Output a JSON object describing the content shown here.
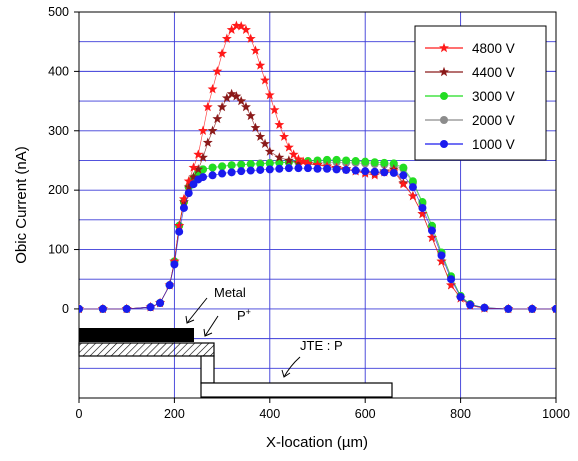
{
  "chart_data": {
    "type": "scatter",
    "title": "",
    "xlabel": "X-location (µm)",
    "ylabel": "Obic Current (nA)",
    "xlim": [
      0,
      1000
    ],
    "ylim": [
      -150,
      500
    ],
    "xticks": [
      0,
      200,
      400,
      600,
      800,
      1000
    ],
    "yticks": [
      0,
      100,
      200,
      300,
      400,
      500
    ],
    "grid": true,
    "legend": "top-right",
    "series": [
      {
        "name": "4800 V",
        "color": "#ff1a1a",
        "marker": "star",
        "x": [
          0,
          50,
          100,
          150,
          170,
          190,
          200,
          210,
          220,
          230,
          240,
          250,
          260,
          270,
          280,
          290,
          300,
          310,
          320,
          330,
          340,
          350,
          360,
          370,
          380,
          390,
          400,
          410,
          420,
          430,
          440,
          450,
          460,
          470,
          480,
          500,
          520,
          540,
          560,
          580,
          600,
          620,
          640,
          660,
          680,
          700,
          720,
          740,
          760,
          780,
          800,
          820,
          850,
          900,
          950,
          1000
        ],
        "y": [
          0,
          0,
          0,
          3,
          10,
          40,
          80,
          140,
          185,
          215,
          238,
          260,
          300,
          340,
          370,
          400,
          430,
          455,
          470,
          477,
          476,
          470,
          455,
          435,
          410,
          385,
          360,
          335,
          310,
          290,
          272,
          260,
          252,
          248,
          245,
          243,
          240,
          238,
          236,
          232,
          228,
          225,
          230,
          232,
          210,
          190,
          160,
          120,
          80,
          40,
          18,
          6,
          1,
          0,
          0,
          0
        ]
      },
      {
        "name": "4400 V",
        "color": "#8b1a1a",
        "marker": "star",
        "x": [
          0,
          50,
          100,
          150,
          170,
          190,
          200,
          210,
          220,
          230,
          240,
          250,
          260,
          270,
          280,
          290,
          300,
          310,
          320,
          330,
          340,
          350,
          360,
          370,
          380,
          390,
          400,
          420,
          440,
          460,
          480,
          500,
          520,
          540,
          560,
          580,
          600,
          620,
          640,
          660,
          680,
          700,
          720,
          740,
          760,
          780,
          800,
          820,
          850,
          900,
          950,
          1000
        ],
        "y": [
          0,
          0,
          0,
          3,
          10,
          40,
          80,
          140,
          180,
          205,
          222,
          235,
          255,
          280,
          300,
          320,
          340,
          355,
          362,
          358,
          350,
          340,
          325,
          305,
          290,
          278,
          265,
          255,
          250,
          246,
          244,
          242,
          240,
          237,
          235,
          232,
          230,
          228,
          232,
          235,
          212,
          190,
          160,
          120,
          80,
          40,
          18,
          6,
          1,
          0,
          0,
          0
        ]
      },
      {
        "name": "3000 V",
        "color": "#22dd22",
        "marker": "circle",
        "x": [
          0,
          50,
          100,
          150,
          170,
          190,
          200,
          210,
          220,
          230,
          240,
          250,
          260,
          280,
          300,
          320,
          340,
          360,
          380,
          400,
          420,
          440,
          460,
          480,
          500,
          520,
          540,
          560,
          580,
          600,
          620,
          640,
          660,
          680,
          700,
          720,
          740,
          760,
          780,
          800,
          820,
          850,
          900,
          950,
          1000
        ],
        "y": [
          0,
          0,
          0,
          3,
          10,
          40,
          80,
          140,
          180,
          205,
          220,
          230,
          235,
          238,
          240,
          242,
          243,
          244,
          244,
          245,
          246,
          247,
          248,
          249,
          250,
          251,
          251,
          250,
          249,
          248,
          247,
          246,
          245,
          238,
          215,
          180,
          140,
          95,
          55,
          22,
          8,
          2,
          0,
          0,
          0
        ]
      },
      {
        "name": "2000 V",
        "color": "#8c8c8c",
        "marker": "circle",
        "x": [
          0,
          50,
          100,
          150,
          170,
          190,
          200,
          210,
          220,
          230,
          240,
          250,
          260,
          280,
          300,
          320,
          340,
          360,
          380,
          400,
          420,
          440,
          460,
          480,
          500,
          520,
          540,
          560,
          580,
          600,
          620,
          640,
          660,
          680,
          700,
          720,
          740,
          760,
          780,
          800,
          820,
          850,
          900,
          950,
          1000
        ],
        "y": [
          0,
          0,
          0,
          3,
          10,
          40,
          80,
          140,
          180,
          205,
          220,
          230,
          235,
          238,
          240,
          242,
          243,
          244,
          245,
          246,
          247,
          247,
          247,
          247,
          247,
          247,
          247,
          246,
          246,
          245,
          244,
          243,
          242,
          236,
          212,
          178,
          138,
          93,
          53,
          21,
          8,
          2,
          0,
          0,
          0
        ]
      },
      {
        "name": "1000 V",
        "color": "#1a1aee",
        "marker": "circle",
        "x": [
          0,
          50,
          100,
          150,
          170,
          190,
          200,
          210,
          220,
          230,
          240,
          250,
          260,
          280,
          300,
          320,
          340,
          360,
          380,
          400,
          420,
          440,
          460,
          480,
          500,
          520,
          540,
          560,
          580,
          600,
          620,
          640,
          660,
          680,
          700,
          720,
          740,
          760,
          780,
          800,
          820,
          850,
          900,
          950,
          1000
        ],
        "y": [
          0,
          0,
          0,
          3,
          10,
          40,
          75,
          130,
          170,
          195,
          210,
          218,
          222,
          225,
          228,
          230,
          232,
          233,
          234,
          235,
          236,
          237,
          237,
          237,
          236,
          236,
          235,
          234,
          233,
          232,
          231,
          230,
          229,
          225,
          205,
          170,
          132,
          90,
          50,
          20,
          7,
          2,
          0,
          0,
          0
        ]
      }
    ]
  },
  "annotations": {
    "metal": "Metal",
    "p_plus": "P",
    "p_plus_sup": "+",
    "jte": "JTE : P"
  }
}
